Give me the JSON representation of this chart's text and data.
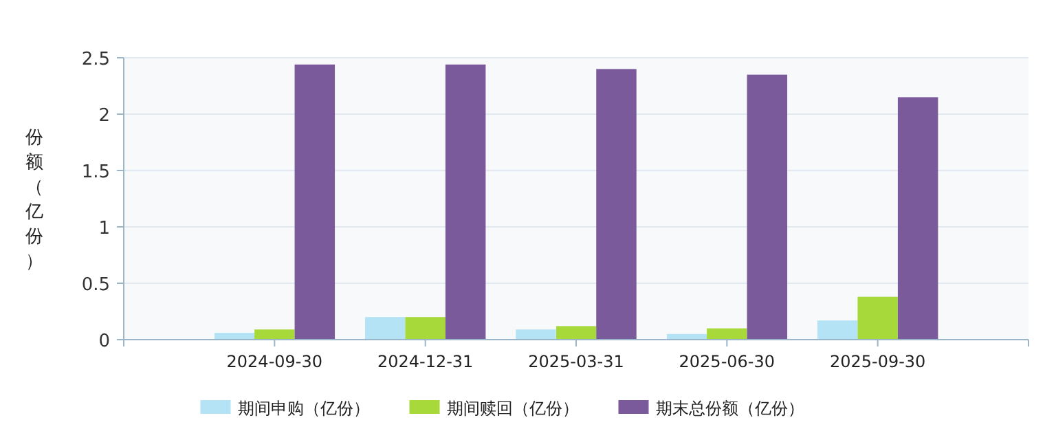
{
  "chart_data": {
    "type": "bar",
    "ylabel": "份额（亿份）",
    "categories": [
      "2024-09-30",
      "2024-12-31",
      "2025-03-31",
      "2025-06-30",
      "2025-09-30"
    ],
    "series": [
      {
        "name": "期间申购（亿份）",
        "color": "#b3e3f4",
        "values": [
          0.06,
          0.2,
          0.09,
          0.05,
          0.17
        ]
      },
      {
        "name": "期间赎回（亿份）",
        "color": "#a8d93a",
        "values": [
          0.09,
          0.2,
          0.12,
          0.1,
          0.38
        ]
      },
      {
        "name": "期末总份额（亿份）",
        "color": "#7b5a9b",
        "values": [
          2.44,
          2.44,
          2.4,
          2.35,
          2.15
        ]
      }
    ],
    "ylim": [
      0,
      2.5
    ],
    "yticks": [
      0,
      {
        "value": 0.5,
        "label": "0.5"
      },
      1,
      {
        "value": 1.5,
        "label": "1.5"
      },
      2,
      {
        "value": 2.5,
        "label": "2.5"
      }
    ],
    "grid": "y",
    "legend": "bottom"
  }
}
